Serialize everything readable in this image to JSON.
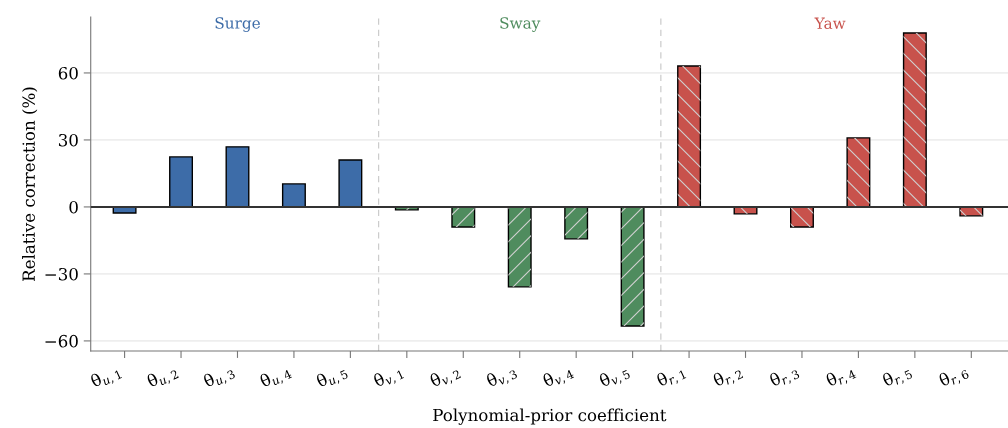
{
  "chart_data": {
    "type": "bar",
    "xlabel": "Polynomial-prior coefficient",
    "ylabel": "Relative correction (%)",
    "categories": [
      "θ$_{u,1}$",
      "θ$_{u,2}$",
      "θ$_{u,3}$",
      "θ$_{u,4}$",
      "θ$_{u,5}$",
      "θ$_{v,1}$",
      "θ$_{v,2}$",
      "θ$_{v,3}$",
      "θ$_{v,4}$",
      "θ$_{v,5}$",
      "θ$_{r,1}$",
      "θ$_{r,2}$",
      "θ$_{r,3}$",
      "θ$_{r,4}$",
      "θ$_{r,5}$",
      "θ$_{r,6}$"
    ],
    "series": [
      {
        "name": "Surge",
        "color": "#3d6ca8",
        "values": [
          -2.7,
          22.4,
          26.9,
          10.3,
          21,
          null,
          null,
          null,
          null,
          null,
          null,
          null,
          null,
          null,
          null,
          null
        ]
      },
      {
        "name": "Sway",
        "color": "#4f8c5e",
        "values": [
          null,
          null,
          null,
          null,
          null,
          -1.3,
          -9,
          -35.8,
          -14.3,
          -53.3,
          null,
          null,
          null,
          null,
          null,
          null
        ]
      },
      {
        "name": "Yaw",
        "color": "#c8524c",
        "values": [
          null,
          null,
          null,
          null,
          null,
          null,
          null,
          null,
          null,
          null,
          63.1,
          -3.1,
          -9,
          30.9,
          77.9,
          -4
        ]
      }
    ],
    "ylim": [
      -64.5,
      85
    ],
    "yticks": [
      {
        "value": -60,
        "label": "−60"
      },
      {
        "value": -30,
        "label": "−30"
      },
      0,
      30,
      60
    ],
    "grid": "y",
    "legend": false
  }
}
